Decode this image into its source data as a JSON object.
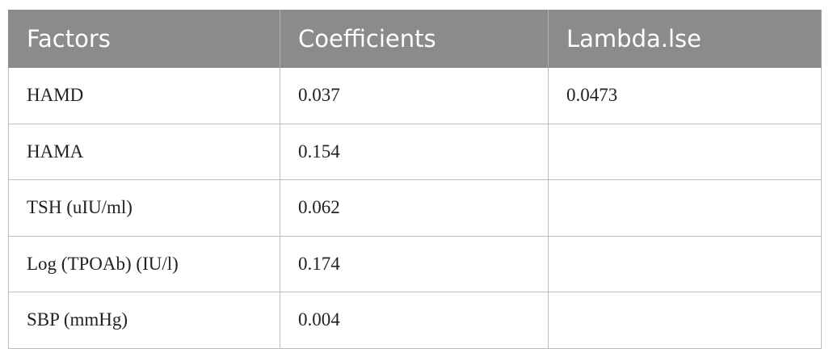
{
  "table": {
    "headers": [
      "Factors",
      "Coefficients",
      "Lambda.lse"
    ],
    "rows": [
      [
        "HAMD",
        "0.037",
        "0.0473"
      ],
      [
        "HAMA",
        "0.154"
      ],
      [
        "TSH (uIU/ml)",
        "0.062"
      ],
      [
        "Log (TPOAb) (IU/l)",
        "0.174"
      ],
      [
        "SBP (mmHg)",
        "0.004"
      ]
    ]
  }
}
